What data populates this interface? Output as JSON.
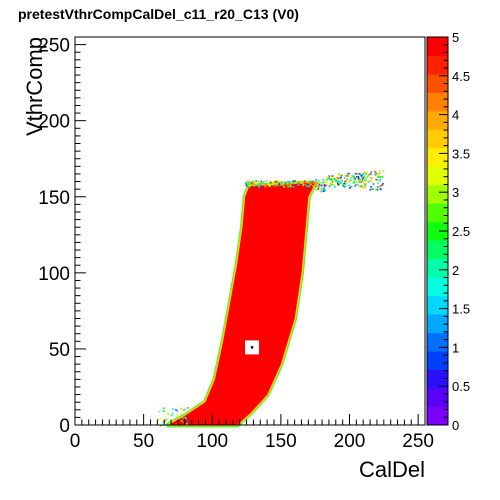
{
  "chart_data": {
    "type": "heatmap",
    "title": "pretestVthrCompCalDel_c11_r20_C13 (V0)",
    "xlabel": "CalDel",
    "ylabel": "VthrComp",
    "xlim": [
      0,
      255
    ],
    "ylim": [
      0,
      255
    ],
    "x_ticks": [
      0,
      50,
      100,
      150,
      200,
      250
    ],
    "y_ticks": [
      0,
      50,
      100,
      150,
      200,
      250
    ],
    "z_range": [
      0,
      5
    ],
    "z_ticks": [
      0,
      0.5,
      1,
      1.5,
      2,
      2.5,
      3,
      3.5,
      4,
      4.5,
      5
    ],
    "colorbar_colors": [
      "#7a00ff",
      "#5a00ff",
      "#2a10ff",
      "#0040ff",
      "#0070ff",
      "#00a8ff",
      "#00d8ff",
      "#00ffe0",
      "#00ffaa",
      "#00ff60",
      "#10ff10",
      "#50ff00",
      "#a0ff00",
      "#e0ff00",
      "#ffee00",
      "#ffcc00",
      "#ffaa00",
      "#ff8000",
      "#ff5000",
      "#ff2000",
      "#ff0000"
    ],
    "fill_value": 5,
    "region_left_edge": [
      [
        68,
        0
      ],
      [
        80,
        6
      ],
      [
        95,
        15
      ],
      [
        102,
        30
      ],
      [
        108,
        55
      ],
      [
        113,
        80
      ],
      [
        118,
        105
      ],
      [
        122,
        130
      ],
      [
        124,
        150
      ],
      [
        127,
        157
      ]
    ],
    "region_top_edge": [
      [
        127,
        157
      ],
      [
        150,
        158
      ],
      [
        175,
        159
      ]
    ],
    "region_right_edge": [
      [
        175,
        159
      ],
      [
        170,
        150
      ],
      [
        168,
        130
      ],
      [
        165,
        100
      ],
      [
        160,
        70
      ],
      [
        150,
        40
      ],
      [
        140,
        20
      ],
      [
        128,
        8
      ],
      [
        118,
        0
      ]
    ],
    "plateau_noise": {
      "x_range": [
        175,
        225
      ],
      "y_center": 161,
      "y_spread": 3
    },
    "hole": {
      "x": 129,
      "y": 51
    }
  }
}
